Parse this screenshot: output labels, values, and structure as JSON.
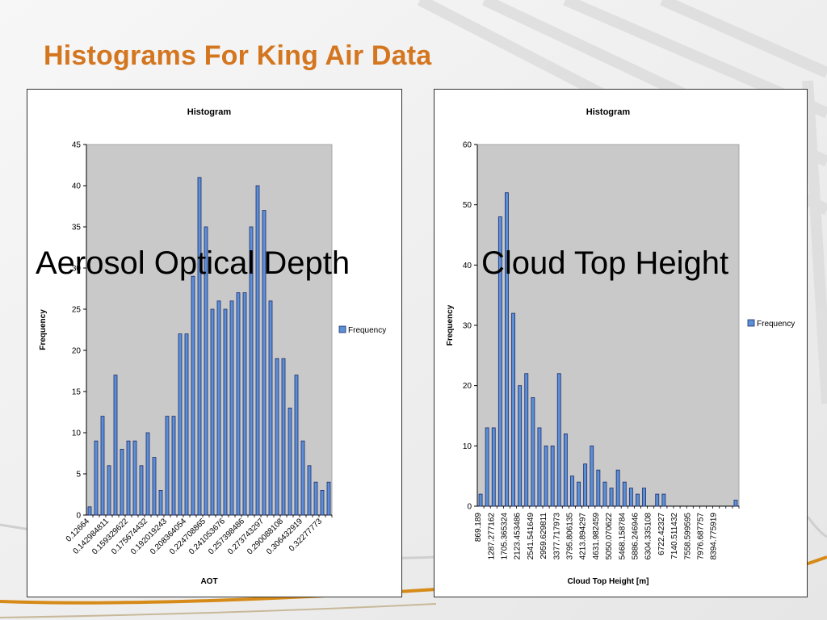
{
  "slide": {
    "title": "Histograms For King Air Data"
  },
  "overlays": {
    "left": "Aerosol Optical Depth",
    "right": "Cloud Top Height"
  },
  "colors": {
    "title": "#d4761f",
    "plot_area": "#c9c9c9",
    "bar_fill": "#5b8fd6",
    "bar_stroke": "#1c2b6b",
    "accent_stripe": "#d68a18"
  },
  "chart_data": [
    {
      "type": "bar",
      "title": "Histogram",
      "xlabel": "AOT",
      "ylabel": "Frequency",
      "ylim": [
        0,
        45
      ],
      "yticks": [
        0,
        5,
        10,
        15,
        20,
        25,
        30,
        35,
        40,
        45
      ],
      "legend": "right",
      "grid": false,
      "tick_labels": [
        "0.12664",
        "0.142984811",
        "0.159329622",
        "0.175674432",
        "0.192019243",
        "0.208364054",
        "0.224708865",
        "0.241053676",
        "0.257398486",
        "0.273743297",
        "0.290088108",
        "0.306432919",
        "0.32277773"
      ],
      "series": [
        {
          "name": "Frequency",
          "values": [
            1,
            9,
            12,
            6,
            17,
            8,
            9,
            9,
            6,
            10,
            7,
            3,
            12,
            12,
            22,
            22,
            29,
            41,
            35,
            25,
            26,
            25,
            26,
            27,
            27,
            35,
            40,
            37,
            26,
            19,
            19,
            13,
            17,
            9,
            6,
            4,
            3,
            4
          ]
        }
      ]
    },
    {
      "type": "bar",
      "title": "Histogram",
      "xlabel": "Cloud Top Height [m]",
      "ylabel": "Frequency",
      "ylim": [
        0,
        60
      ],
      "yticks": [
        0,
        10,
        20,
        30,
        40,
        50,
        60
      ],
      "legend": "right",
      "grid": false,
      "tick_labels": [
        "869.189",
        "1287.277162",
        "1705.365324",
        "2123.453486",
        "2541.541649",
        "2959.629811",
        "3377.717973",
        "3795.806135",
        "4213.894297",
        "4631.982459",
        "5050.070622",
        "5468.158784",
        "5886.246946",
        "6304.335108",
        "6722.42327",
        "7140.511432",
        "7558.599595",
        "7976.687757",
        "8394.775919"
      ],
      "series": [
        {
          "name": "Frequency",
          "values": [
            2,
            13,
            13,
            48,
            52,
            32,
            20,
            22,
            18,
            13,
            10,
            10,
            22,
            12,
            5,
            4,
            7,
            10,
            6,
            4,
            3,
            6,
            4,
            3,
            2,
            3,
            0,
            2,
            2,
            0,
            0,
            0,
            0,
            0,
            0,
            0,
            0,
            0,
            0,
            1
          ]
        }
      ]
    }
  ]
}
